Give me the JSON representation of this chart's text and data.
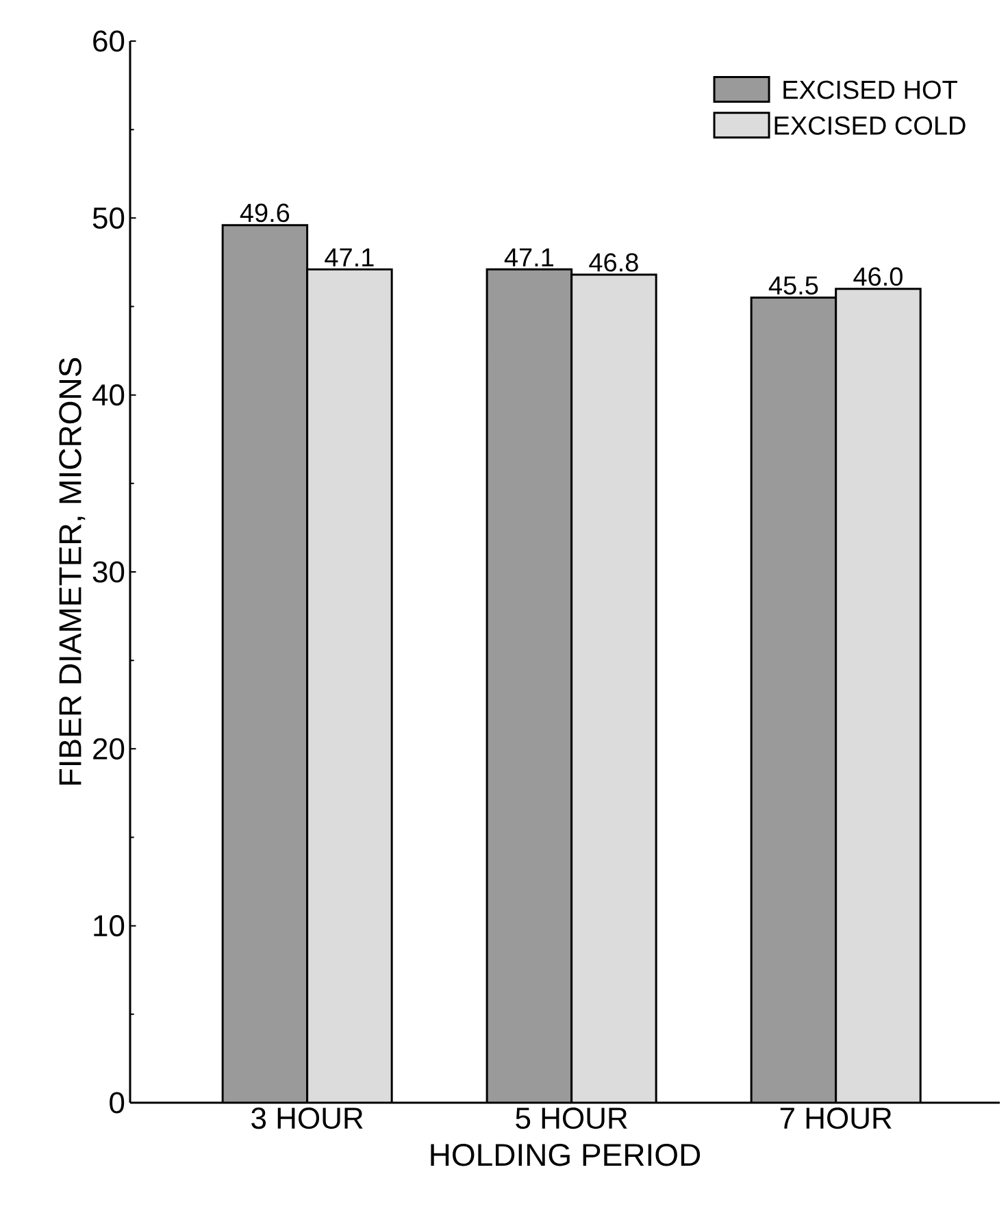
{
  "chart_data": {
    "type": "bar",
    "xlabel": "HOLDING PERIOD",
    "ylabel": "FIBER DIAMETER, MICRONS",
    "categories": [
      "3 HOUR",
      "5 HOUR",
      "7 HOUR"
    ],
    "series": [
      {
        "name": "EXCISED HOT",
        "color": "#9a9a9a",
        "values": [
          49.6,
          47.1,
          45.5
        ],
        "value_labels": [
          "49.6",
          "47.1",
          "45.5"
        ]
      },
      {
        "name": "EXCISED COLD",
        "color": "#dcdcdc",
        "values": [
          47.1,
          46.8,
          46.0
        ],
        "value_labels": [
          "47.1",
          "46.8",
          "46.0"
        ]
      }
    ],
    "ylim": [
      0,
      60
    ],
    "yticks": [
      0,
      10,
      20,
      30,
      40,
      50,
      60
    ],
    "legend": "top right"
  }
}
